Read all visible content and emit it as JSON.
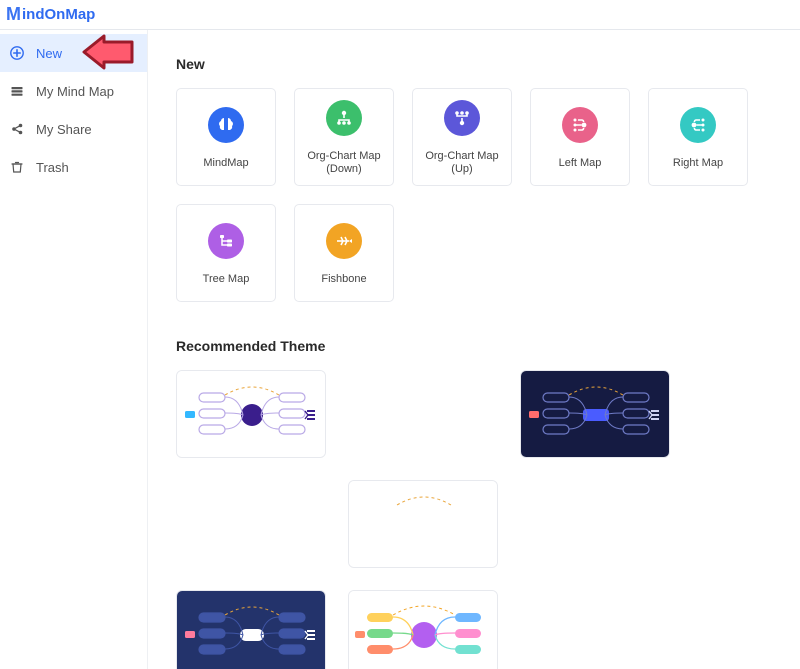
{
  "logo": {
    "text": "indOnMap"
  },
  "sidebar": {
    "items": [
      {
        "label": "New"
      },
      {
        "label": "My Mind Map"
      },
      {
        "label": "My Share"
      },
      {
        "label": "Trash"
      }
    ]
  },
  "sections": {
    "new_title": "New",
    "rec_title": "Recommended Theme"
  },
  "templates": [
    {
      "label": "MindMap",
      "color": "#2f6bf0",
      "icon": "brain"
    },
    {
      "label": "Org-Chart Map (Down)",
      "color": "#3cbf6c",
      "icon": "org-down"
    },
    {
      "label": "Org-Chart Map (Up)",
      "color": "#5c57d9",
      "icon": "org-up"
    },
    {
      "label": "Left Map",
      "color": "#e9628a",
      "icon": "left"
    },
    {
      "label": "Right Map",
      "color": "#34c9c3",
      "icon": "right"
    },
    {
      "label": "Tree Map",
      "color": "#ae5fe5",
      "icon": "tree"
    },
    {
      "label": "Fishbone",
      "color": "#f2a424",
      "icon": "fish"
    }
  ],
  "themes": [
    {
      "bg": "#ffffff",
      "node": "#3a1e8c",
      "pill_fill": "#ffffff",
      "pill_stroke": "#b9a9e6",
      "side": "#33b8ff",
      "text": "#3a1e8c"
    },
    {
      "bg": "#151b42",
      "node": "#4a5cff",
      "pill_fill": "none",
      "pill_stroke": "#6f7bc7",
      "side": "#ff6c6c",
      "text": "#cfd3f2"
    },
    {
      "bg": "#ffffff",
      "node": "#ffffff",
      "pill_fill": "#ffffff",
      "pill_stroke": "#ffffff",
      "side": "#ffffff",
      "text": "#ffffff"
    },
    {
      "bg": "#23336b",
      "node": "#ffffff",
      "pill_fill": "#3f55a5",
      "pill_stroke": "#3f55a5",
      "side": "#ff7b9c",
      "text": "#ffffff"
    },
    {
      "bg": "#ffffff",
      "node": "#b35ff0",
      "pill_fill_multi": [
        "#ffd15c",
        "#76d98b",
        "#ff8d6b",
        "#6fb7ff",
        "#ff8fcf",
        "#72e1d1"
      ],
      "side": "#ff8d6b",
      "text": "#b35ff0",
      "style": "colorful"
    }
  ],
  "colors": {
    "arrow_fill": "#ff5a6e",
    "arrow_stroke": "#9a1b2a"
  }
}
